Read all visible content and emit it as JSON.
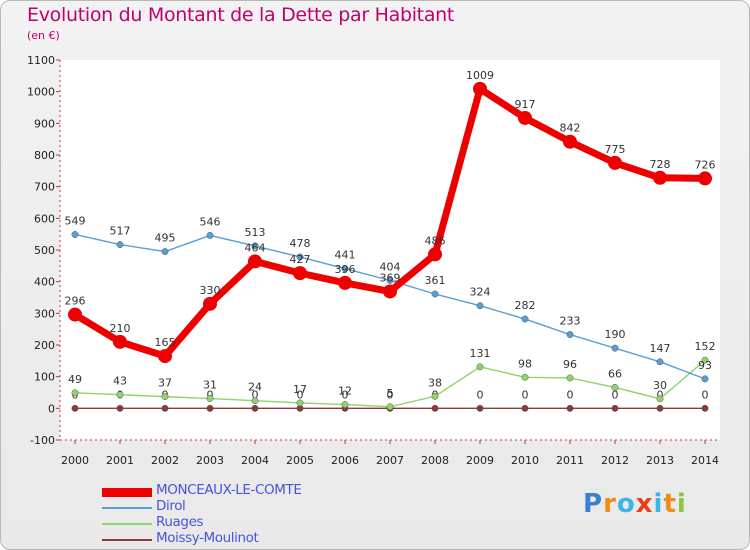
{
  "chart_data": {
    "type": "line",
    "title": "Evolution du Montant de la Dette par Habitant",
    "subtitle": "(en €)",
    "xlabel": "",
    "ylabel": "",
    "x": [
      2000,
      2001,
      2002,
      2003,
      2004,
      2005,
      2006,
      2007,
      2008,
      2009,
      2010,
      2011,
      2012,
      2013,
      2014
    ],
    "ylim": [
      -100,
      1100
    ],
    "yticks": [
      -100,
      0,
      100,
      200,
      300,
      400,
      500,
      600,
      700,
      800,
      900,
      1000,
      1100
    ],
    "legend_position": "bottom-left",
    "series": [
      {
        "name": "MONCEAUX-LE-COMTE",
        "color": "#ee0000",
        "values": [
          296,
          210,
          165,
          330,
          464,
          427,
          396,
          369,
          486,
          1009,
          917,
          842,
          775,
          728,
          726
        ],
        "labels": [
          "296",
          "210",
          "165",
          "330",
          "464",
          "427",
          "396",
          "369",
          "486",
          "1009",
          "917",
          "842",
          "775",
          "728",
          "726"
        ]
      },
      {
        "name": "Dirol",
        "color": "#5a9fd4",
        "values": [
          549,
          517,
          495,
          546,
          513,
          478,
          441,
          404,
          361,
          324,
          282,
          233,
          190,
          147,
          93
        ],
        "labels": [
          "549",
          "517",
          "495",
          "546",
          "513",
          "478",
          "441",
          "404",
          "361",
          "324",
          "282",
          "233",
          "190",
          "147",
          "93"
        ]
      },
      {
        "name": "Ruages",
        "color": "#8fd468",
        "values": [
          49,
          43,
          37,
          31,
          24,
          17,
          12,
          5,
          38,
          131,
          98,
          96,
          66,
          30,
          152
        ],
        "labels": [
          "49",
          "43",
          "37",
          "31",
          "24",
          "17",
          "12",
          "5",
          "38",
          "131",
          "98",
          "96",
          "66",
          "30",
          "152"
        ]
      },
      {
        "name": "Moissy-Moulinot",
        "color": "#8b3a3a",
        "values": [
          0,
          0,
          0,
          0,
          0,
          0,
          0,
          0,
          0,
          0,
          0,
          0,
          0,
          0,
          0
        ],
        "labels": [
          "0",
          "0",
          "0",
          "0",
          "0",
          "0",
          "0",
          "0",
          "0",
          "0",
          "0",
          "0",
          "0",
          "0",
          "0"
        ]
      }
    ]
  },
  "logo": {
    "letters": [
      "P",
      "r",
      "o",
      "x",
      "i",
      "t",
      "i"
    ],
    "colors": [
      "#3a7fd0",
      "#f08c1a",
      "#3cb4e6",
      "#e8401c",
      "#3cb4e6",
      "#f08c1a",
      "#8cc63e"
    ]
  }
}
